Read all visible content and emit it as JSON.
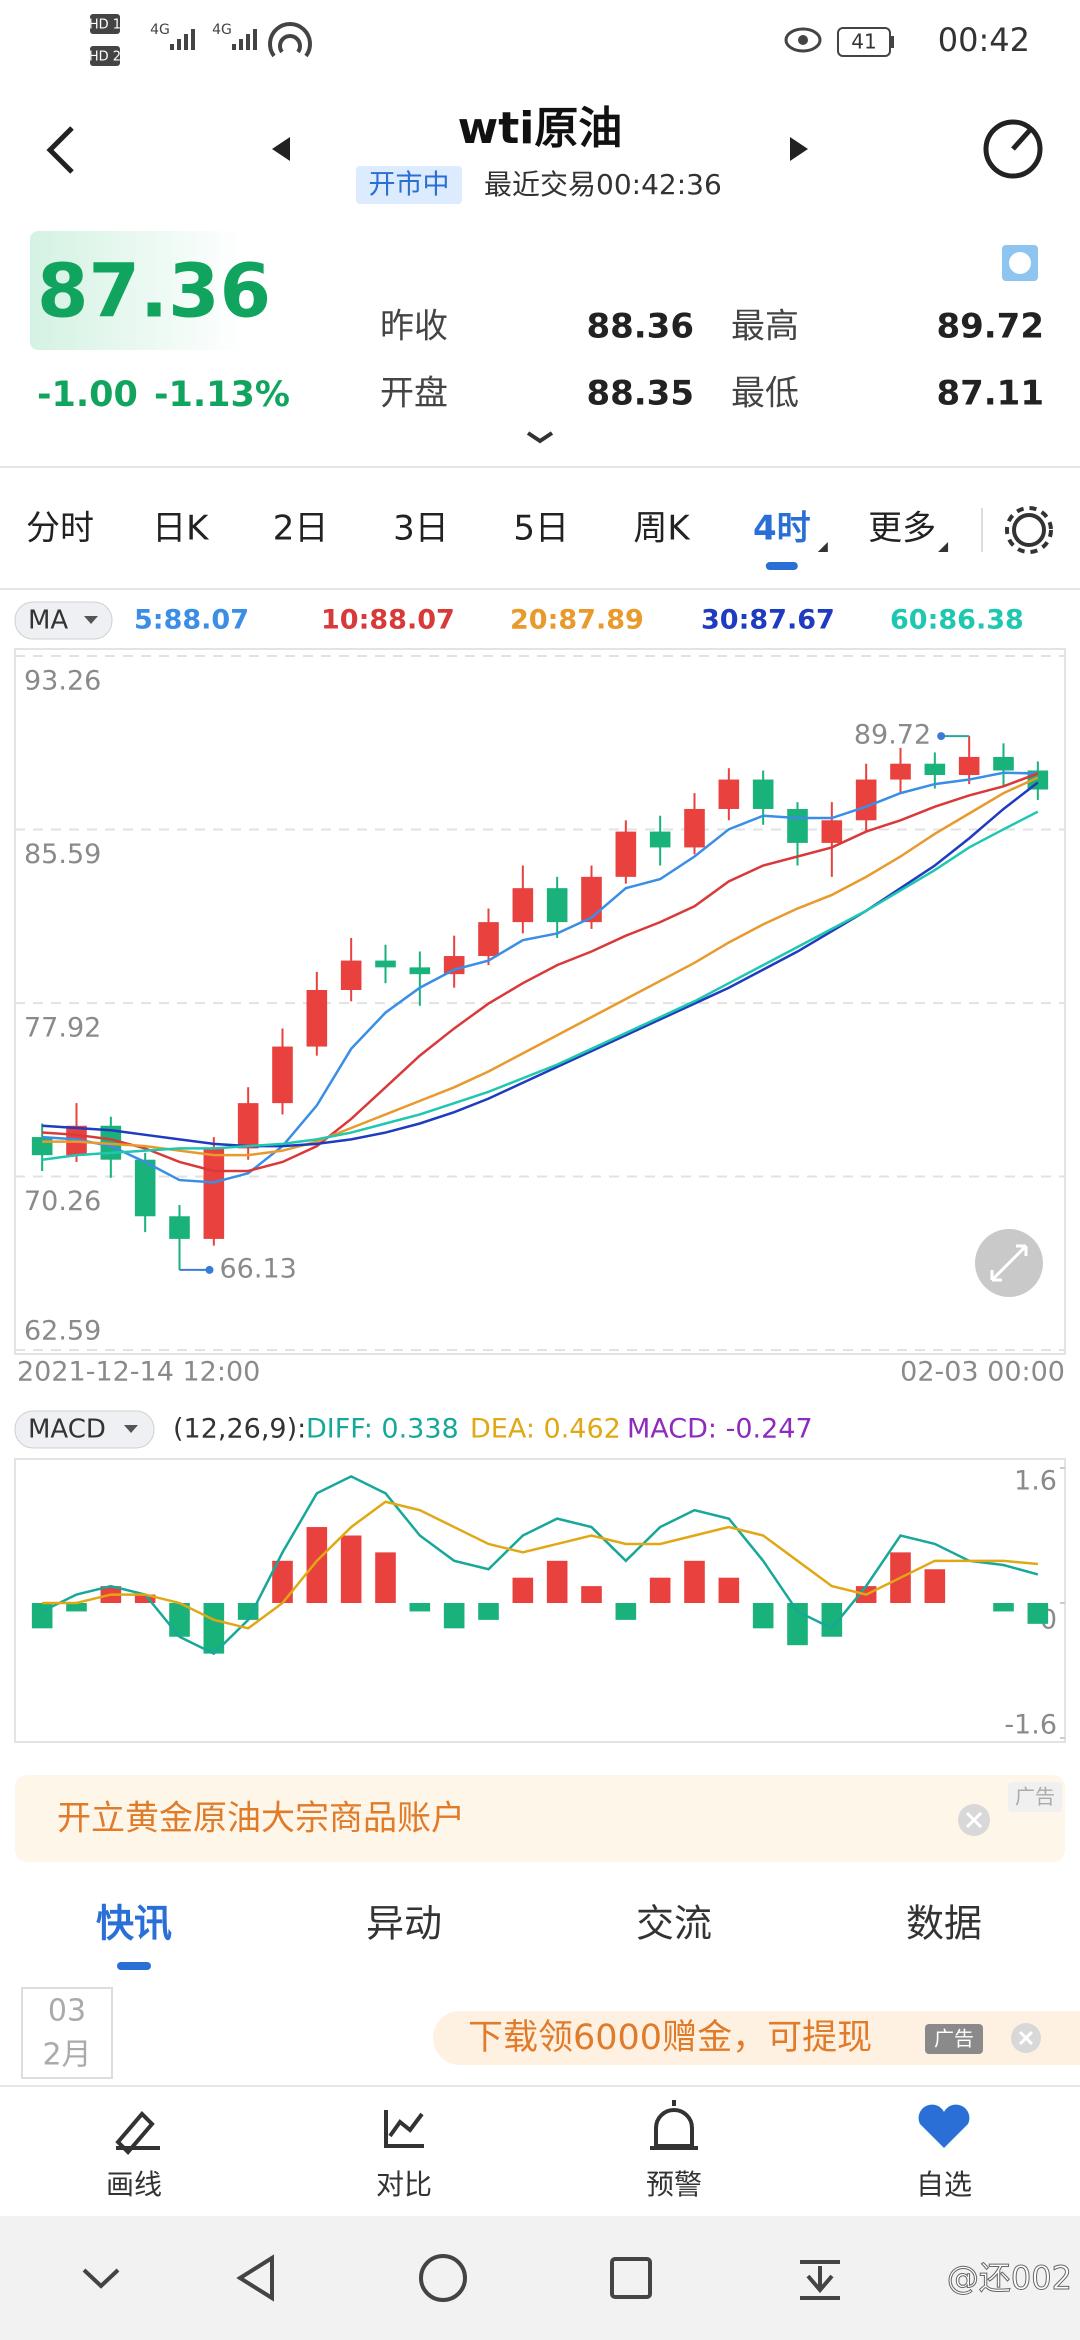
{
  "status_bar": {
    "sims": [
      "HD 1",
      "HD 2"
    ],
    "network": [
      "4G",
      "4G"
    ],
    "battery": "41",
    "time": "00:42"
  },
  "header": {
    "title": "wti原油",
    "status": "开市中",
    "last_trade": "最近交易00:42:36"
  },
  "quote": {
    "price": "87.36",
    "change": "-1.00",
    "change_pct": "-1.13%",
    "fields": [
      {
        "label": "昨收",
        "value": "88.36"
      },
      {
        "label": "开盘",
        "value": "88.35"
      },
      {
        "label": "最高",
        "value": "89.72"
      },
      {
        "label": "最低",
        "value": "87.11"
      }
    ]
  },
  "period_tabs": {
    "items": [
      "分时",
      "日K",
      "2日",
      "3日",
      "5日",
      "周K",
      "4时",
      "更多"
    ],
    "active": 6
  },
  "chart_data": [
    {
      "type": "candlestick",
      "indicator": "MA",
      "categories": [
        "2021-12-14 12:00",
        null,
        null,
        null,
        null,
        null,
        null,
        null,
        null,
        null,
        null,
        null,
        null,
        null,
        null,
        null,
        null,
        null,
        null,
        null,
        null,
        null,
        null,
        null,
        null,
        null,
        null,
        null,
        null,
        "02-03 00:00"
      ],
      "ylim": [
        62.59,
        93.26
      ],
      "yticks": [
        93.26,
        85.59,
        77.92,
        70.26,
        62.59
      ],
      "grid": true,
      "up_color": "#e8413e",
      "down_color": "#19b27a",
      "open": [
        72.0,
        71.2,
        72.5,
        71.0,
        68.5,
        67.5,
        71.5,
        73.5,
        76.0,
        78.5,
        79.8,
        79.5,
        79.2,
        80.0,
        81.5,
        83.0,
        81.5,
        83.5,
        85.5,
        84.8,
        86.5,
        87.8,
        86.5,
        85.0,
        86.0,
        87.8,
        88.5,
        88.0,
        88.8,
        88.2
      ],
      "close": [
        71.2,
        72.5,
        71.0,
        68.5,
        67.5,
        71.5,
        73.5,
        76.0,
        78.5,
        79.8,
        79.5,
        79.2,
        80.0,
        81.5,
        83.0,
        81.5,
        83.5,
        85.5,
        84.8,
        86.5,
        87.8,
        86.5,
        85.0,
        86.0,
        87.8,
        88.5,
        88.0,
        88.8,
        88.2,
        87.36
      ],
      "high": [
        72.6,
        73.5,
        72.9,
        71.3,
        69.0,
        72.0,
        74.2,
        76.8,
        79.3,
        80.8,
        80.5,
        80.2,
        80.9,
        82.1,
        84.0,
        83.5,
        84.0,
        86.0,
        86.2,
        87.2,
        88.3,
        88.2,
        86.8,
        86.8,
        88.5,
        89.2,
        89.0,
        89.72,
        89.4,
        88.6
      ],
      "low": [
        70.5,
        70.9,
        70.2,
        67.8,
        66.13,
        67.2,
        71.0,
        73.0,
        75.6,
        78.0,
        78.8,
        77.8,
        78.6,
        79.6,
        81.0,
        80.8,
        81.2,
        83.2,
        84.0,
        84.5,
        86.0,
        85.8,
        84.0,
        83.5,
        85.5,
        87.2,
        87.4,
        87.6,
        87.5,
        86.9
      ],
      "series": [
        {
          "label": "5:88.07",
          "color": "#3a8ee6",
          "values": [
            72.0,
            71.9,
            71.6,
            70.9,
            70.1,
            70.0,
            70.4,
            71.6,
            73.4,
            75.9,
            77.5,
            78.6,
            79.4,
            79.8,
            80.7,
            81.0,
            81.7,
            83.0,
            83.4,
            84.4,
            85.6,
            86.2,
            86.1,
            86.1,
            86.6,
            87.2,
            87.6,
            87.8,
            88.1,
            88.07
          ]
        },
        {
          "label": "10:88.07",
          "color": "#d83a3a",
          "values": [
            72.2,
            72.1,
            71.9,
            71.5,
            70.9,
            70.5,
            70.5,
            70.9,
            71.6,
            72.8,
            74.2,
            75.6,
            76.8,
            77.9,
            78.8,
            79.6,
            80.2,
            80.9,
            81.5,
            82.2,
            83.3,
            84.0,
            84.4,
            84.8,
            85.5,
            86.0,
            86.6,
            87.1,
            87.5,
            88.07
          ]
        },
        {
          "label": "20:87.89",
          "color": "#e89a2c",
          "values": [
            71.8,
            71.8,
            71.7,
            71.6,
            71.4,
            71.2,
            71.2,
            71.4,
            71.8,
            72.4,
            73.0,
            73.6,
            74.2,
            74.9,
            75.7,
            76.5,
            77.3,
            78.1,
            78.9,
            79.7,
            80.6,
            81.4,
            82.1,
            82.7,
            83.5,
            84.4,
            85.4,
            86.3,
            87.2,
            87.89
          ]
        },
        {
          "label": "30:87.67",
          "color": "#1f3bbf",
          "values": [
            72.5,
            72.4,
            72.3,
            72.1,
            71.9,
            71.7,
            71.6,
            71.6,
            71.7,
            71.9,
            72.2,
            72.6,
            73.1,
            73.7,
            74.4,
            75.1,
            75.8,
            76.5,
            77.2,
            77.9,
            78.6,
            79.4,
            80.2,
            81.1,
            82.0,
            83.0,
            84.0,
            85.2,
            86.5,
            87.67
          ]
        },
        {
          "label": "60:86.38",
          "color": "#1fc7b0",
          "values": [
            71.0,
            71.2,
            71.3,
            71.4,
            71.5,
            71.5,
            71.6,
            71.7,
            71.9,
            72.2,
            72.6,
            73.0,
            73.5,
            74.0,
            74.6,
            75.2,
            75.9,
            76.6,
            77.3,
            78.0,
            78.8,
            79.6,
            80.4,
            81.2,
            82.0,
            82.9,
            83.8,
            84.8,
            85.6,
            86.38
          ]
        }
      ]
    },
    {
      "type": "macd",
      "indicator": "MACD",
      "params": "(12,26,9):",
      "ylim": [
        -1.6,
        1.6
      ],
      "yticks": [
        1.6,
        0,
        -1.6
      ],
      "up_color": "#e8413e",
      "down_color": "#19b27a",
      "series": [
        {
          "label": "DIFF: 0.338",
          "color": "#17a89a",
          "values": [
            -0.1,
            0.1,
            0.2,
            0.1,
            -0.4,
            -0.6,
            -0.2,
            0.6,
            1.3,
            1.5,
            1.3,
            0.8,
            0.5,
            0.4,
            0.8,
            1.0,
            0.9,
            0.5,
            0.9,
            1.1,
            1.0,
            0.5,
            -0.1,
            -0.3,
            0.2,
            0.8,
            0.7,
            0.5,
            0.45,
            0.338
          ]
        },
        {
          "label": "DEA: 0.462",
          "color": "#e0a815",
          "values": [
            0.0,
            0.0,
            0.1,
            0.1,
            0.0,
            -0.2,
            -0.3,
            0.0,
            0.5,
            0.9,
            1.2,
            1.1,
            0.9,
            0.7,
            0.6,
            0.7,
            0.8,
            0.7,
            0.7,
            0.8,
            0.9,
            0.8,
            0.5,
            0.2,
            0.1,
            0.3,
            0.5,
            0.5,
            0.5,
            0.462
          ]
        },
        {
          "label": "MACD: -0.247",
          "color": "#8e2bbd",
          "bars": true,
          "values": [
            -0.3,
            -0.1,
            0.2,
            0.1,
            -0.4,
            -0.6,
            -0.2,
            0.5,
            0.9,
            0.8,
            0.6,
            -0.1,
            -0.3,
            -0.2,
            0.3,
            0.5,
            0.2,
            -0.2,
            0.3,
            0.5,
            0.3,
            -0.3,
            -0.5,
            -0.4,
            0.2,
            0.6,
            0.4,
            0.0,
            -0.1,
            -0.247
          ]
        }
      ]
    }
  ],
  "ad_banner": {
    "text": "开立黄金原油大宗商品账户",
    "tag": "广告"
  },
  "news_tabs": {
    "items": [
      "快讯",
      "异动",
      "交流",
      "数据"
    ],
    "active": 0
  },
  "news": {
    "day": "03",
    "month": "2月",
    "ad_text": "下载领6000赠金，可提现",
    "ad_tag": "广告"
  },
  "toolbar": [
    "画线",
    "对比",
    "预警",
    "自选"
  ],
  "watermark": "@还002"
}
